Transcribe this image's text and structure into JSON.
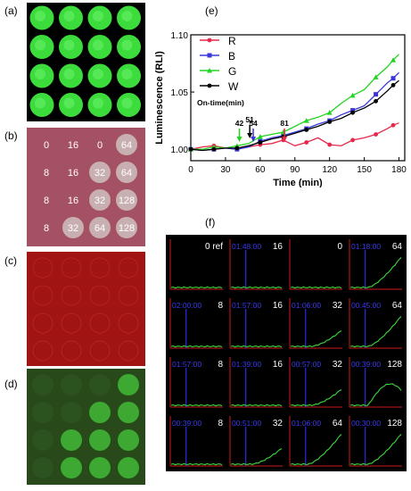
{
  "panel_labels": {
    "a": "(a)",
    "b": "(b)",
    "c": "(c)",
    "d": "(d)",
    "e": "(e)",
    "f": "(f)"
  },
  "panel_b_numbers": [
    [
      "0",
      "16",
      "0",
      "64"
    ],
    [
      "8",
      "16",
      "32",
      "64"
    ],
    [
      "8",
      "16",
      "32",
      "128"
    ],
    [
      "8",
      "32",
      "64",
      "128"
    ]
  ],
  "panel_d_spots_lit": [
    [
      false,
      false,
      false,
      true
    ],
    [
      false,
      false,
      true,
      true
    ],
    [
      false,
      true,
      true,
      true
    ],
    [
      false,
      true,
      true,
      true
    ]
  ],
  "panel_f_cells": [
    [
      {
        "time": "",
        "label": "0 ref",
        "curve": "flat",
        "marker": false
      },
      {
        "time": "01:48:00",
        "label": "16",
        "curve": "flat",
        "marker": true
      },
      {
        "time": "",
        "label": "0",
        "curve": "flat",
        "marker": false
      },
      {
        "time": "01:18:00",
        "label": "64",
        "curve": "rise",
        "marker": true
      }
    ],
    [
      {
        "time": "02:00:00",
        "label": "8",
        "curve": "flat",
        "marker": true
      },
      {
        "time": "01:57:00",
        "label": "16",
        "curve": "flat",
        "marker": true
      },
      {
        "time": "01:06:00",
        "label": "32",
        "curve": "slow",
        "marker": true
      },
      {
        "time": "00:45:00",
        "label": "64",
        "curve": "rise",
        "marker": true
      }
    ],
    [
      {
        "time": "01:57:00",
        "label": "8",
        "curve": "flat",
        "marker": true
      },
      {
        "time": "01:39:00",
        "label": "16",
        "curve": "flat",
        "marker": true
      },
      {
        "time": "00:57:00",
        "label": "32",
        "curve": "slow",
        "marker": true
      },
      {
        "time": "00:39:00",
        "label": "128",
        "curve": "peak",
        "marker": true
      }
    ],
    [
      {
        "time": "00:39:00",
        "label": "8",
        "curve": "flat",
        "marker": true
      },
      {
        "time": "00:51:00",
        "label": "32",
        "curve": "slow",
        "marker": true
      },
      {
        "time": "01:06:00",
        "label": "64",
        "curve": "rise",
        "marker": true
      },
      {
        "time": "00:30:00",
        "label": "128",
        "curve": "rise",
        "marker": true
      }
    ]
  ],
  "chart_data": {
    "type": "line",
    "xlabel": "Time (min)",
    "ylabel": "Luminescence (RLI)",
    "xlim": [
      0,
      185
    ],
    "ylim": [
      0.99,
      1.1
    ],
    "xticks": [
      0,
      30,
      60,
      90,
      120,
      150,
      180
    ],
    "yticks": [
      1.0,
      1.05,
      1.1
    ],
    "ytick_labels": [
      "1.00",
      "1.05",
      "1.10"
    ],
    "legend_position": "top-left",
    "series": [
      {
        "name": "R",
        "color": "#e8284a",
        "marker": "circle",
        "x": [
          0,
          10,
          20,
          30,
          40,
          50,
          60,
          70,
          80,
          90,
          100,
          110,
          120,
          130,
          140,
          150,
          160,
          170,
          175,
          180
        ],
        "y": [
          1.0,
          1.002,
          1.003,
          1.001,
          1.0,
          1.002,
          1.004,
          1.005,
          1.008,
          1.003,
          1.006,
          1.01,
          1.004,
          1.003,
          1.008,
          1.01,
          1.013,
          1.018,
          1.021,
          1.023
        ]
      },
      {
        "name": "B",
        "color": "#3a37d8",
        "marker": "square",
        "x": [
          0,
          10,
          20,
          30,
          40,
          50,
          60,
          70,
          80,
          90,
          100,
          110,
          120,
          130,
          140,
          150,
          160,
          170,
          175,
          180
        ],
        "y": [
          1.0,
          0.999,
          1.0,
          1.001,
          1.0,
          1.002,
          1.007,
          1.01,
          1.012,
          1.015,
          1.018,
          1.022,
          1.025,
          1.03,
          1.034,
          1.038,
          1.048,
          1.058,
          1.062,
          1.067
        ]
      },
      {
        "name": "G",
        "color": "#22d422",
        "marker": "triangle",
        "x": [
          0,
          10,
          20,
          30,
          40,
          50,
          60,
          70,
          80,
          90,
          100,
          110,
          120,
          130,
          140,
          150,
          160,
          170,
          175,
          180
        ],
        "y": [
          1.0,
          1.0,
          1.002,
          1.001,
          1.003,
          1.005,
          1.011,
          1.013,
          1.015,
          1.02,
          1.025,
          1.028,
          1.032,
          1.04,
          1.047,
          1.052,
          1.063,
          1.072,
          1.078,
          1.083
        ]
      },
      {
        "name": "W",
        "color": "#000000",
        "marker": "circle",
        "x": [
          0,
          10,
          20,
          30,
          40,
          50,
          60,
          70,
          80,
          90,
          100,
          110,
          120,
          130,
          140,
          150,
          160,
          170,
          175,
          180
        ],
        "y": [
          1.0,
          0.999,
          1.0,
          1.001,
          1.001,
          1.003,
          1.006,
          1.009,
          1.011,
          1.014,
          1.017,
          1.02,
          1.024,
          1.027,
          1.032,
          1.036,
          1.042,
          1.051,
          1.056,
          1.06
        ]
      }
    ],
    "annotation_title": "On-time(min)",
    "annotations": [
      {
        "label": "42",
        "x": 42,
        "color": "#22d422"
      },
      {
        "label": "51",
        "x": 51,
        "color": "#000000"
      },
      {
        "label": "54",
        "x": 54,
        "color": "#3a37d8"
      },
      {
        "label": "81",
        "x": 81,
        "color": "#e8284a"
      }
    ]
  }
}
